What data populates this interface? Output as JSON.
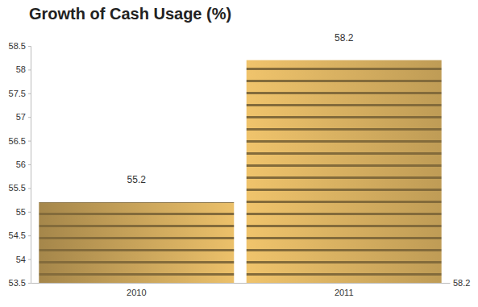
{
  "chart_data": {
    "type": "bar",
    "title": "Growth of Cash Usage (%)",
    "categories": [
      "2010",
      "2011"
    ],
    "values": [
      55.2,
      58.2
    ],
    "color": "#c9a45a",
    "ylim": [
      53.5,
      58.5
    ],
    "yticks": [
      53.5,
      54,
      54.5,
      55,
      55.5,
      56,
      56.5,
      57,
      57.5,
      58,
      58.5
    ],
    "grid": false,
    "data_labels": true,
    "annotations": [
      "58.2"
    ]
  }
}
